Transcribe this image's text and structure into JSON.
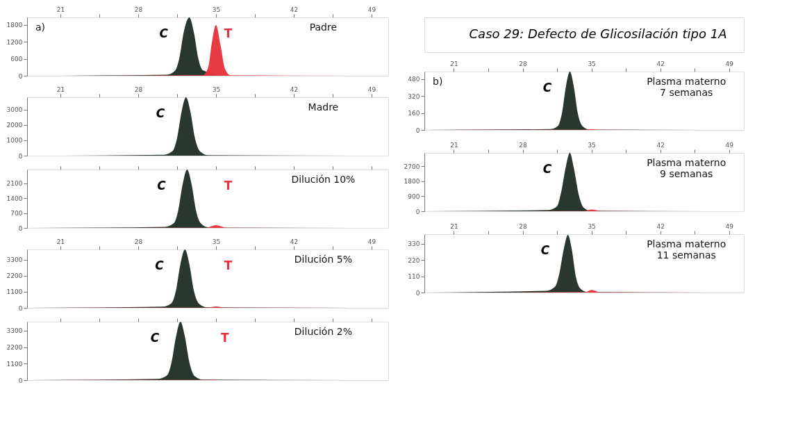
{
  "chart_data": [
    {
      "type": "area",
      "annotations": [
        "a)",
        "Padre"
      ],
      "xlim": [
        18,
        50.5
      ],
      "ylim": [
        0,
        2070
      ],
      "xticks": [
        21,
        {
          "value": 24.5,
          "label": null
        },
        28,
        {
          "value": 31.5,
          "label": null
        },
        35,
        {
          "value": 38.5,
          "label": null
        },
        42,
        {
          "value": 45.5,
          "label": null
        },
        49
      ],
      "yticks": [
        0,
        600,
        1200,
        1800
      ],
      "series": [
        {
          "name": "C",
          "color": "#1e2d24",
          "x": [
            18,
            30.6,
            31.3,
            31.7,
            32.1,
            32.6,
            33.0,
            33.4,
            33.8,
            36,
            50.5
          ],
          "values": [
            0,
            40,
            170,
            620,
            1550,
            2070,
            1550,
            620,
            200,
            0,
            0
          ]
        },
        {
          "name": "T",
          "color": "#e8303a",
          "x": [
            18,
            33.8,
            34.3,
            34.6,
            35,
            35.4,
            35.8,
            36.3,
            50.5
          ],
          "values": [
            0,
            20,
            300,
            1100,
            1800,
            1100,
            250,
            20,
            0
          ]
        }
      ]
    },
    {
      "type": "area",
      "annotations": [
        "Madre"
      ],
      "xlim": [
        18,
        50.5
      ],
      "ylim": [
        0,
        3800
      ],
      "xticks": [
        21,
        {
          "value": 24.5,
          "label": null
        },
        28,
        {
          "value": 31.5,
          "label": null
        },
        35,
        {
          "value": 38.5,
          "label": null
        },
        42,
        {
          "value": 45.5,
          "label": null
        },
        49
      ],
      "yticks": [
        0,
        1000,
        2000,
        3000
      ],
      "series": [
        {
          "name": "C",
          "color": "#1e2d24",
          "x": [
            18,
            30.3,
            31.1,
            31.5,
            31.9,
            32.3,
            32.7,
            33.1,
            33.6,
            34.3,
            50.5
          ],
          "values": [
            0,
            60,
            300,
            1150,
            2850,
            3800,
            2850,
            1150,
            250,
            30,
            0
          ]
        }
      ]
    },
    {
      "type": "area",
      "annotations": [
        "Dilución 10%"
      ],
      "tick_labels": "y",
      "xlim": [
        18,
        50.5
      ],
      "ylim": [
        0,
        2750
      ],
      "xticks": [
        21,
        {
          "value": 24.5,
          "label": null
        },
        28,
        {
          "value": 31.5,
          "label": null
        },
        35,
        {
          "value": 38.5,
          "label": null
        },
        42,
        {
          "value": 45.5,
          "label": null
        },
        49
      ],
      "yticks": [
        0,
        700,
        1400,
        2100
      ],
      "series": [
        {
          "name": "C",
          "color": "#1e2d24",
          "x": [
            18,
            30.4,
            31.2,
            31.6,
            32.0,
            32.4,
            32.8,
            33.2,
            33.7,
            34.4,
            50.5
          ],
          "values": [
            0,
            50,
            220,
            820,
            2060,
            2750,
            2060,
            820,
            180,
            20,
            0
          ]
        },
        {
          "name": "T",
          "color": "#e8303a",
          "x": [
            18,
            34.2,
            34.6,
            35,
            35.4,
            35.9,
            50.5
          ],
          "values": [
            0,
            10,
            80,
            130,
            80,
            10,
            0
          ]
        }
      ]
    },
    {
      "type": "area",
      "annotations": [
        "Dilución 5%"
      ],
      "xlim": [
        18,
        50.5
      ],
      "ylim": [
        0,
        4000
      ],
      "xticks": [
        21,
        {
          "value": 24.5,
          "label": null
        },
        28,
        {
          "value": 31.5,
          "label": null
        },
        35,
        {
          "value": 38.5,
          "label": null
        },
        42,
        {
          "value": 45.5,
          "label": null
        },
        49
      ],
      "yticks": [
        0,
        1100,
        2200,
        3300
      ],
      "series": [
        {
          "name": "C",
          "color": "#1e2d24",
          "x": [
            18,
            30.2,
            31.0,
            31.4,
            31.8,
            32.2,
            32.6,
            33.0,
            33.5,
            34.2,
            50.5
          ],
          "values": [
            0,
            80,
            320,
            1200,
            3000,
            4000,
            3000,
            1200,
            260,
            30,
            0
          ]
        },
        {
          "name": "T",
          "color": "#e8303a",
          "x": [
            18,
            34.2,
            34.6,
            35,
            35.4,
            35.9,
            50.5
          ],
          "values": [
            0,
            10,
            60,
            100,
            60,
            10,
            0
          ]
        }
      ]
    },
    {
      "type": "area",
      "annotations": [
        "Dilución 2%"
      ],
      "tick_labels": "y",
      "xlim": [
        18,
        50.5
      ],
      "ylim": [
        0,
        3900
      ],
      "xticks": [
        21,
        {
          "value": 24.5,
          "label": null
        },
        28,
        {
          "value": 31.5,
          "label": null
        },
        35,
        {
          "value": 38.5,
          "label": null
        },
        42,
        {
          "value": 45.5,
          "label": null
        },
        49
      ],
      "yticks": [
        0,
        1100,
        2200,
        3300
      ],
      "series": [
        {
          "name": "C",
          "color": "#1e2d24",
          "x": [
            18,
            29.8,
            30.6,
            31.0,
            31.4,
            31.8,
            32.2,
            32.6,
            33.1,
            33.8,
            50.5
          ],
          "values": [
            0,
            80,
            320,
            1200,
            2900,
            3900,
            2900,
            1200,
            250,
            30,
            0
          ]
        },
        {
          "name": "T",
          "color": "#e8303a",
          "x": [
            18,
            34.0,
            34.4,
            34.7,
            35.0,
            35.5,
            50.5
          ],
          "values": [
            0,
            10,
            20,
            30,
            20,
            0,
            0
          ]
        }
      ]
    },
    {
      "type": "other",
      "title": "Caso 29: Defecto de Glicosilación tipo 1A"
    },
    {
      "type": "area",
      "annotations": [
        "b)",
        "Plasma materno\n7 semanas"
      ],
      "xlim": [
        18,
        50.5
      ],
      "ylim": [
        0,
        550
      ],
      "xticks": [
        21,
        {
          "value": 24.5,
          "label": null
        },
        28,
        {
          "value": 31.5,
          "label": null
        },
        35,
        {
          "value": 38.5,
          "label": null
        },
        42,
        {
          "value": 45.5,
          "label": null
        },
        49
      ],
      "yticks": [
        0,
        160,
        320,
        480
      ],
      "series": [
        {
          "name": "C",
          "color": "#1e2d24",
          "x": [
            18,
            30.8,
            31.6,
            32.0,
            32.4,
            32.8,
            33.2,
            33.6,
            34.1,
            34.8,
            50.5
          ],
          "values": [
            0,
            8,
            40,
            160,
            410,
            550,
            410,
            160,
            35,
            4,
            0
          ]
        },
        {
          "color": "#e8303a",
          "x": [
            18,
            34.4,
            35.0,
            35.6,
            50.5
          ],
          "values": [
            0,
            2,
            8,
            2,
            0
          ]
        }
      ]
    },
    {
      "type": "area",
      "annotations": [
        "Plasma materno\n9 semanas"
      ],
      "xlim": [
        18,
        50.5
      ],
      "ylim": [
        0,
        3500
      ],
      "xticks": [
        21,
        {
          "value": 24.5,
          "label": null
        },
        28,
        {
          "value": 31.5,
          "label": null
        },
        35,
        {
          "value": 38.5,
          "label": null
        },
        42,
        {
          "value": 45.5,
          "label": null
        },
        49
      ],
      "yticks": [
        0,
        900,
        1800,
        2700
      ],
      "series": [
        {
          "name": "C",
          "color": "#1e2d24",
          "x": [
            18,
            30.6,
            31.5,
            31.9,
            32.4,
            32.8,
            33.2,
            33.7,
            34.2,
            34.9,
            50.5
          ],
          "values": [
            0,
            70,
            300,
            1100,
            2700,
            3500,
            2600,
            1000,
            220,
            30,
            0
          ]
        },
        {
          "color": "#e8303a",
          "x": [
            18,
            34.3,
            34.7,
            35.0,
            35.4,
            35.9,
            50.5
          ],
          "values": [
            0,
            10,
            70,
            100,
            70,
            10,
            0
          ]
        }
      ]
    },
    {
      "type": "area",
      "annotations": [
        "Plasma materno\n11 semanas"
      ],
      "xlim": [
        18,
        50.5
      ],
      "ylim": [
        0,
        395
      ],
      "xticks": [
        21,
        {
          "value": 24.5,
          "label": null
        },
        28,
        {
          "value": 31.5,
          "label": null
        },
        35,
        {
          "value": 38.5,
          "label": null
        },
        42,
        {
          "value": 45.5,
          "label": null
        },
        49
      ],
      "yticks": [
        0,
        110,
        220,
        330
      ],
      "series": [
        {
          "name": "C",
          "color": "#1e2d24",
          "x": [
            18,
            30.4,
            31.3,
            31.7,
            32.2,
            32.6,
            33.0,
            33.4,
            33.9,
            34.6,
            50.5
          ],
          "values": [
            0,
            12,
            40,
            120,
            300,
            390,
            290,
            110,
            25,
            4,
            0
          ]
        },
        {
          "color": "#e8303a",
          "x": [
            18,
            20.5,
            21.5,
            34.4,
            34.8,
            35.0,
            35.3,
            35.8,
            50.5
          ],
          "values": [
            0,
            0,
            0,
            3,
            14,
            18,
            14,
            2,
            0
          ]
        }
      ]
    }
  ]
}
